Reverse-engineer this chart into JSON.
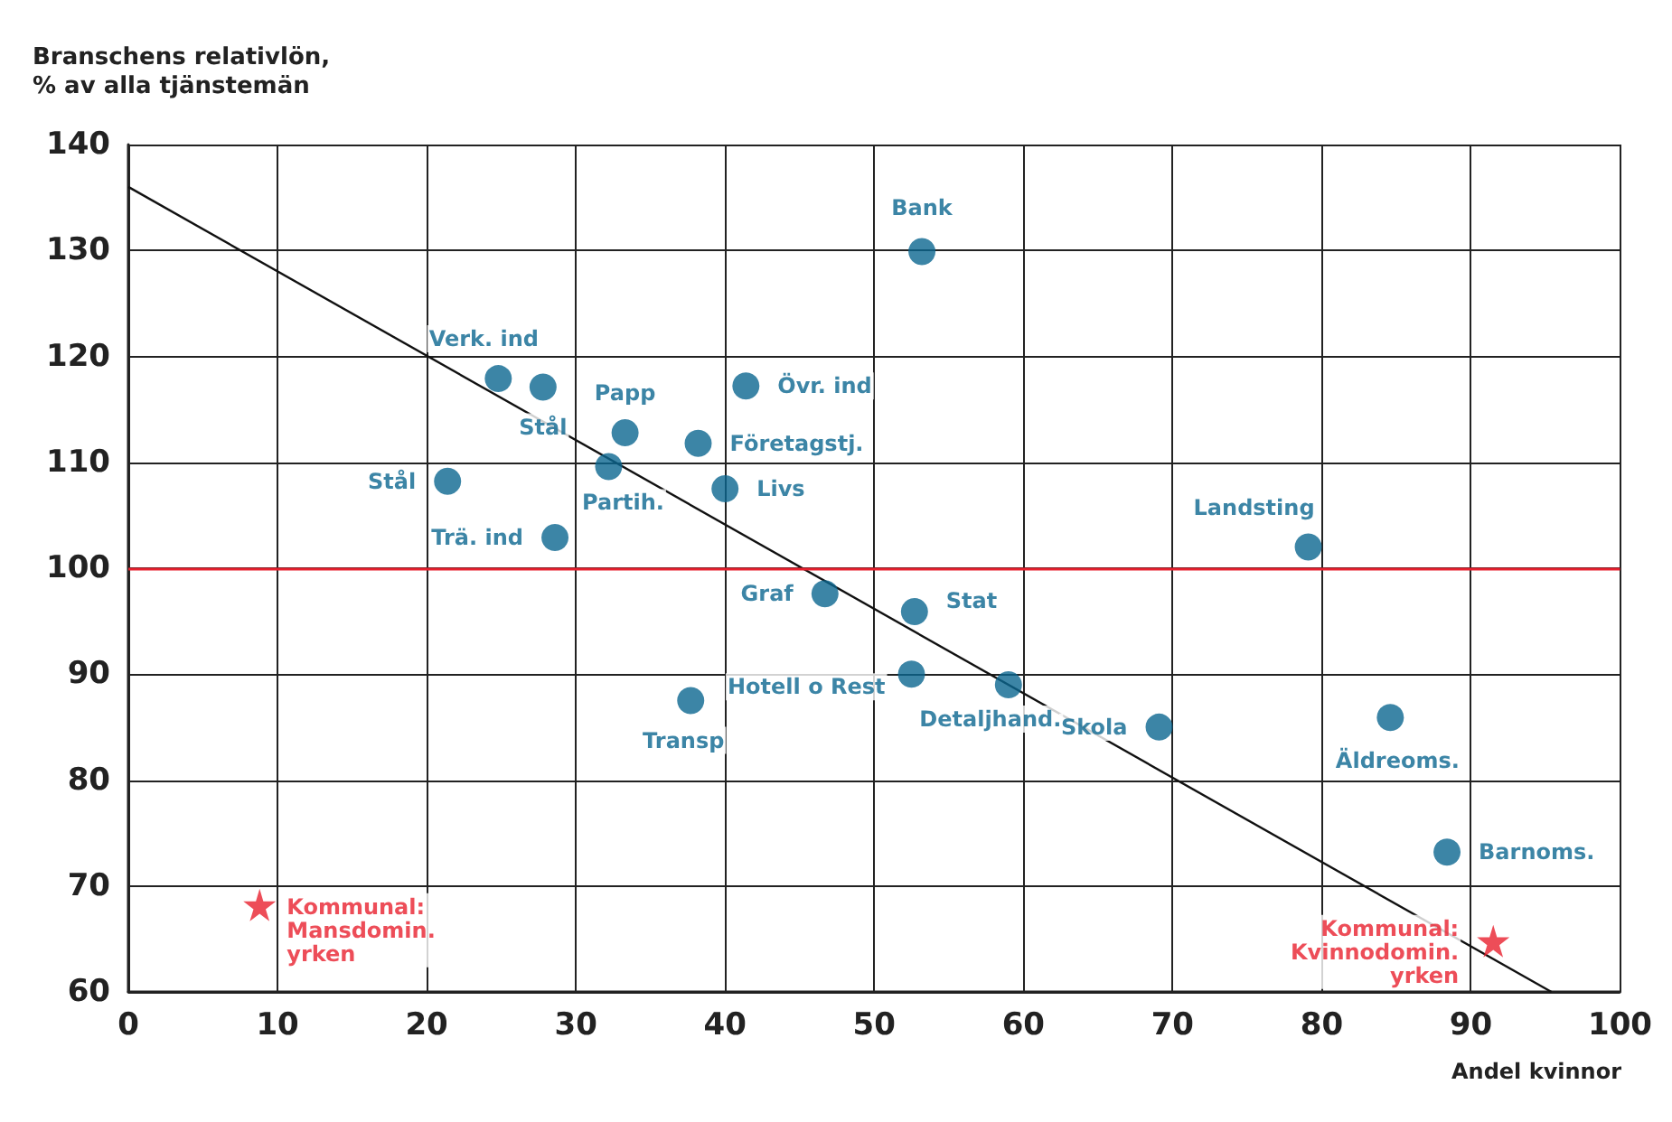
{
  "chart_data": {
    "type": "scatter",
    "ylabel": "Branschens relativlön,\n% av alla tjänstemän",
    "xlabel": "Andel kvinnor",
    "xlim": [
      0,
      100
    ],
    "xticks": [
      0,
      10,
      20,
      30,
      40,
      50,
      60,
      70,
      80,
      90,
      100
    ],
    "ylim": [
      60,
      140
    ],
    "yticks": [
      60,
      70,
      80,
      90,
      100,
      110,
      120,
      130,
      140
    ],
    "grid": true,
    "ref_lines": [
      {
        "axis": "y",
        "value": 100,
        "color": "#e8202e"
      }
    ],
    "series": [
      {
        "name": "Bank",
        "color": "#0b6690",
        "marker": "circle",
        "x": [
          53.2
        ],
        "values": [
          129.9
        ]
      },
      {
        "name": "Verk. ind",
        "color": "#0b6690",
        "marker": "circle",
        "x": [
          24.8
        ],
        "values": [
          117.9
        ]
      },
      {
        "name": "Stål",
        "color": "#0b6690",
        "marker": "circle",
        "x": [
          27.8
        ],
        "values": [
          117.1
        ]
      },
      {
        "name": "Papp",
        "color": "#0b6690",
        "marker": "circle",
        "x": [
          33.3
        ],
        "values": [
          112.8
        ]
      },
      {
        "name": "Övr. ind",
        "color": "#0b6690",
        "marker": "circle",
        "x": [
          41.4
        ],
        "values": [
          117.2
        ]
      },
      {
        "name": "Företagstj.",
        "color": "#0b6690",
        "marker": "circle",
        "x": [
          38.2
        ],
        "values": [
          111.8
        ]
      },
      {
        "name": "Partih.",
        "color": "#0b6690",
        "marker": "circle",
        "x": [
          32.2
        ],
        "values": [
          109.6
        ]
      },
      {
        "name": "Livs",
        "color": "#0b6690",
        "marker": "circle",
        "x": [
          40.0
        ],
        "values": [
          107.5
        ]
      },
      {
        "name": "Stål",
        "color": "#0b6690",
        "marker": "circle",
        "x": [
          21.4
        ],
        "values": [
          108.2
        ]
      },
      {
        "name": "Trä. ind",
        "color": "#0b6690",
        "marker": "circle",
        "x": [
          28.6
        ],
        "values": [
          102.9
        ]
      },
      {
        "name": "Landsting",
        "color": "#0b6690",
        "marker": "circle",
        "x": [
          79.1
        ],
        "values": [
          102.0
        ]
      },
      {
        "name": "Graf",
        "color": "#0b6690",
        "marker": "circle",
        "x": [
          46.7
        ],
        "values": [
          97.6
        ]
      },
      {
        "name": "Stat",
        "color": "#0b6690",
        "marker": "circle",
        "x": [
          52.7
        ],
        "values": [
          95.9
        ]
      },
      {
        "name": "Hotell o Rest",
        "color": "#0b6690",
        "marker": "circle",
        "x": [
          52.5
        ],
        "values": [
          90.0
        ]
      },
      {
        "name": "Detaljhand.",
        "color": "#0b6690",
        "marker": "circle",
        "x": [
          59.0
        ],
        "values": [
          89.0
        ]
      },
      {
        "name": "Transp",
        "color": "#0b6690",
        "marker": "circle",
        "x": [
          37.7
        ],
        "values": [
          87.5
        ]
      },
      {
        "name": "Skola",
        "color": "#0b6690",
        "marker": "circle",
        "x": [
          69.1
        ],
        "values": [
          85.0
        ]
      },
      {
        "name": "Äldreoms.",
        "color": "#0b6690",
        "marker": "circle",
        "x": [
          84.6
        ],
        "values": [
          85.9
        ]
      },
      {
        "name": "Barnoms.",
        "color": "#0b6690",
        "marker": "circle",
        "x": [
          88.4
        ],
        "values": [
          73.2
        ]
      },
      {
        "name": "Kommunal:\nMansdomin.\nyrken",
        "color": "#e8202e",
        "marker": "star",
        "x": [
          8.8
        ],
        "values": [
          68.2
        ]
      },
      {
        "name": "Kommunal:\nKvinnodomin.\nyrken",
        "color": "#e8202e",
        "marker": "star",
        "x": [
          91.5
        ],
        "values": [
          64.8
        ]
      },
      {
        "type": "line",
        "color": "#111111",
        "marker": "none",
        "x": [
          0,
          95.4
        ],
        "values": [
          136.0,
          60.0
        ]
      }
    ]
  }
}
